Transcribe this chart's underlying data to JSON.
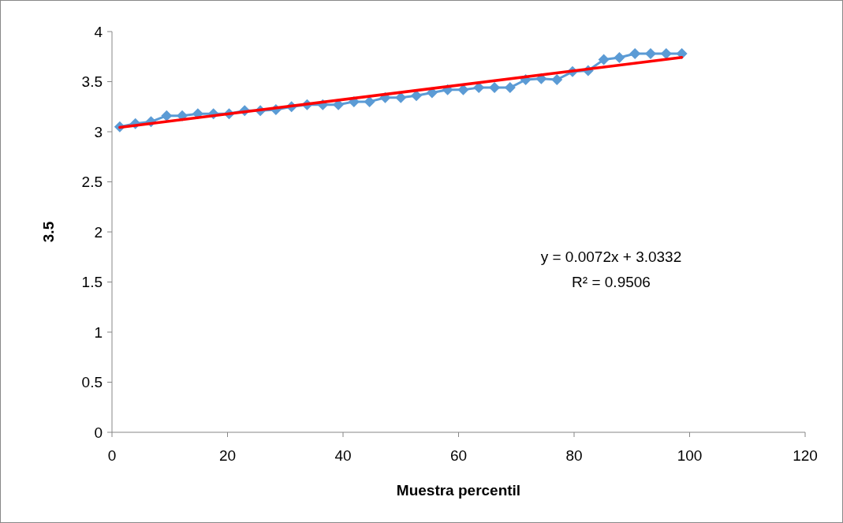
{
  "chart_data": {
    "type": "line",
    "xlabel": "Muestra percentil",
    "ylabel": "3.5",
    "xlim": [
      0,
      120
    ],
    "xticks": [
      0,
      20,
      40,
      60,
      80,
      100,
      120
    ],
    "ylim": [
      0,
      4
    ],
    "yticks": [
      0,
      0.5,
      1,
      1.5,
      2,
      2.5,
      3,
      3.5,
      4
    ],
    "grid": false,
    "x": [
      1.35,
      4.05,
      6.76,
      9.46,
      12.16,
      14.86,
      17.57,
      20.27,
      22.97,
      25.68,
      28.38,
      31.08,
      33.78,
      36.49,
      39.19,
      41.89,
      44.59,
      47.3,
      50,
      52.7,
      55.41,
      58.11,
      60.81,
      63.51,
      66.22,
      68.92,
      71.62,
      74.32,
      77.03,
      79.73,
      82.43,
      85.14,
      87.84,
      90.54,
      93.24,
      95.95,
      98.65
    ],
    "series": [
      {
        "marker": "diamond",
        "color": "#5b9bd5",
        "values": [
          3.05,
          3.08,
          3.1,
          3.16,
          3.16,
          3.18,
          3.18,
          3.18,
          3.21,
          3.21,
          3.22,
          3.25,
          3.27,
          3.27,
          3.27,
          3.3,
          3.3,
          3.34,
          3.34,
          3.36,
          3.39,
          3.42,
          3.42,
          3.44,
          3.44,
          3.44,
          3.52,
          3.53,
          3.52,
          3.6,
          3.61,
          3.72,
          3.74,
          3.78,
          3.78,
          3.78,
          3.78
        ]
      },
      {
        "marker": "none",
        "color": "#ff0000",
        "x": [
          1.35,
          98.65
        ],
        "values": [
          3.043,
          3.743
        ]
      }
    ],
    "annotations": [
      "y = 0.0072x + 3.0332",
      "R² = 0.9506"
    ]
  }
}
